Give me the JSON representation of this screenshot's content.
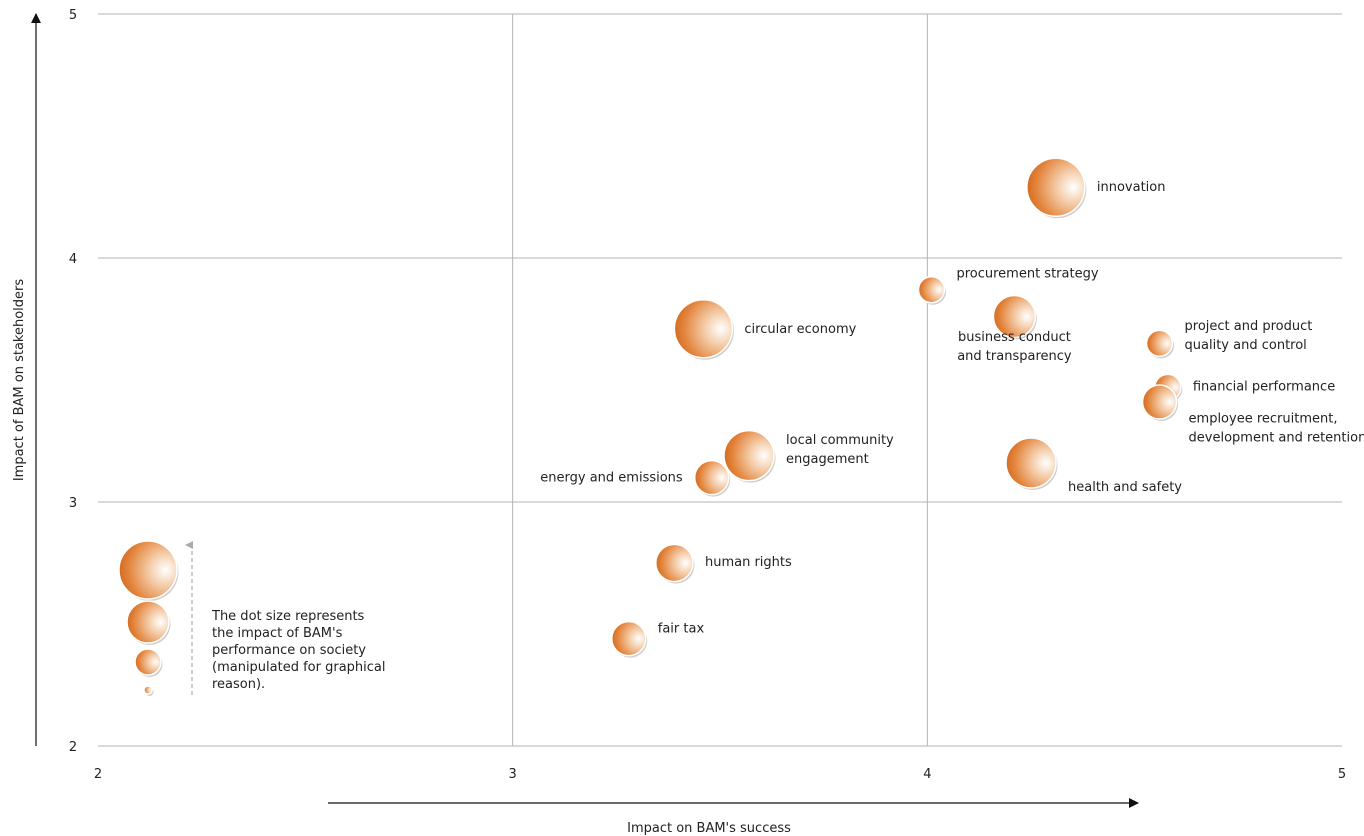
{
  "chart_data": {
    "type": "scatter",
    "xlabel": "Impact on BAM's success",
    "ylabel": "Impact of BAM on stakeholders",
    "xlim": [
      2,
      5
    ],
    "ylim": [
      2,
      5
    ],
    "x_ticks": [
      "2",
      "3",
      "4",
      "5"
    ],
    "y_ticks": [
      "2",
      "3",
      "4",
      "5"
    ],
    "grid": true,
    "bubble_color": "#e07a30",
    "points": [
      {
        "label": [
          "innovation"
        ],
        "x": 4.31,
        "y": 4.29,
        "size": 3
      },
      {
        "label": [
          "procurement strategy"
        ],
        "x": 4.01,
        "y": 3.87,
        "size": 1
      },
      {
        "label": [
          "circular economy"
        ],
        "x": 3.46,
        "y": 3.71,
        "size": 3
      },
      {
        "label": [
          "business conduct",
          "and transparency"
        ],
        "x": 4.21,
        "y": 3.76,
        "size": 2
      },
      {
        "label": [
          "project and product",
          "quality and control"
        ],
        "x": 4.56,
        "y": 3.65,
        "size": 1
      },
      {
        "label": [
          "financial performance"
        ],
        "x": 4.58,
        "y": 3.47,
        "size": 1
      },
      {
        "label": [
          "employee recruitment,",
          "development and retention"
        ],
        "x": 4.56,
        "y": 3.41,
        "size": 1.5
      },
      {
        "label": [
          "local community",
          "engagement"
        ],
        "x": 3.57,
        "y": 3.19,
        "size": 2.5
      },
      {
        "label": [
          "energy and emissions"
        ],
        "x": 3.48,
        "y": 3.1,
        "size": 1.5
      },
      {
        "label": [
          "health and safety"
        ],
        "x": 4.25,
        "y": 3.16,
        "size": 2.5
      },
      {
        "label": [
          "human rights"
        ],
        "x": 3.39,
        "y": 2.75,
        "size": 1.7
      },
      {
        "label": [
          "fair tax"
        ],
        "x": 3.28,
        "y": 2.44,
        "size": 1.5
      }
    ],
    "legend": {
      "text": [
        "The dot size represents",
        "the impact of BAM's",
        "performance on society",
        "(manipulated for graphical",
        "reason)."
      ],
      "sizes": [
        3,
        2,
        1,
        0.5
      ]
    }
  }
}
